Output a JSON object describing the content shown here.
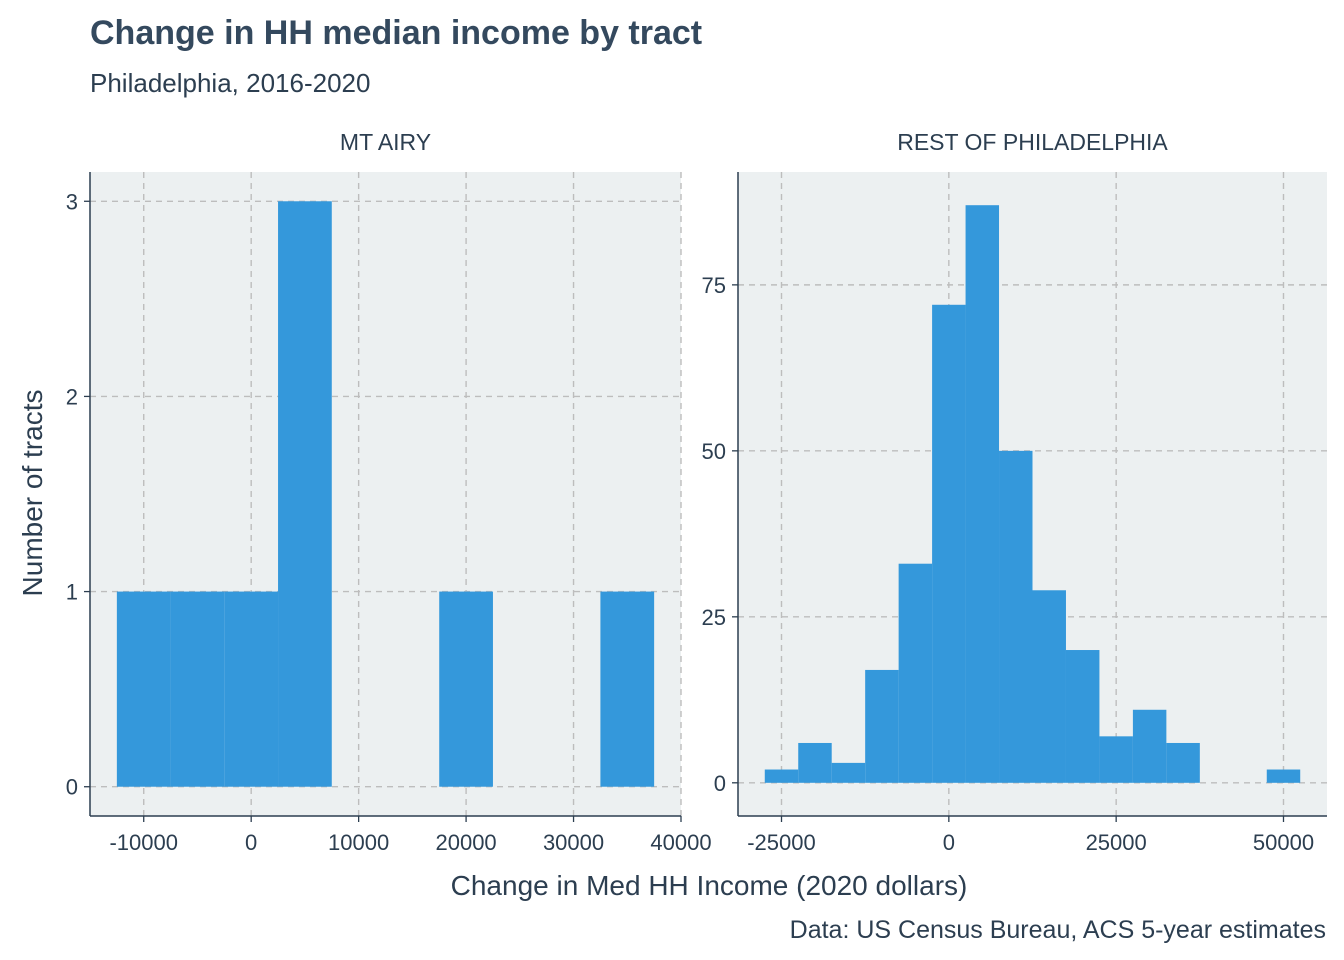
{
  "title": "Change in HH median income by tract",
  "subtitle": "Philadelphia, 2016-2020",
  "xlabel": "Change in Med HH Income (2020 dollars)",
  "ylabel": "Number of tracts",
  "caption": "Data: US Census Bureau, ACS 5-year estimates",
  "colors": {
    "bar": "#3498db",
    "panel_bg": "#ecf0f1",
    "grid": "#bdbdbd",
    "text": "#2c3e50"
  },
  "chart_data": [
    {
      "type": "bar",
      "panel": "MT AIRY",
      "xlim": [
        -15000,
        40000
      ],
      "ylim": [
        -0.15,
        3.15
      ],
      "x_ticks": [
        -10000,
        0,
        10000,
        20000,
        30000,
        40000
      ],
      "x_tick_labels": [
        "-10000",
        "0",
        "10000",
        "20000",
        "30000",
        "40000"
      ],
      "y_ticks": [
        0,
        1,
        2,
        3
      ],
      "y_tick_labels": [
        "0",
        "1",
        "2",
        "3"
      ],
      "grid": true,
      "bins": [
        {
          "x0": -12500,
          "x1": -7500,
          "count": 1
        },
        {
          "x0": -7500,
          "x1": -2500,
          "count": 1
        },
        {
          "x0": -2500,
          "x1": 2500,
          "count": 1
        },
        {
          "x0": 2500,
          "x1": 7500,
          "count": 3
        },
        {
          "x0": 17500,
          "x1": 22500,
          "count": 1
        },
        {
          "x0": 32500,
          "x1": 37500,
          "count": 1
        }
      ]
    },
    {
      "type": "bar",
      "panel": "REST OF PHILADELPHIA",
      "xlim": [
        -31500,
        56500
      ],
      "ylim": [
        -5,
        92
      ],
      "x_ticks": [
        -25000,
        0,
        25000,
        50000
      ],
      "x_tick_labels": [
        "-25000",
        "0",
        "25000",
        "50000"
      ],
      "y_ticks": [
        0,
        25,
        50,
        75
      ],
      "y_tick_labels": [
        "0",
        "25",
        "50",
        "75"
      ],
      "grid": true,
      "bins": [
        {
          "x0": -27500,
          "x1": -22500,
          "count": 2
        },
        {
          "x0": -22500,
          "x1": -17500,
          "count": 6
        },
        {
          "x0": -17500,
          "x1": -12500,
          "count": 3
        },
        {
          "x0": -12500,
          "x1": -7500,
          "count": 17
        },
        {
          "x0": -7500,
          "x1": -2500,
          "count": 33
        },
        {
          "x0": -2500,
          "x1": 2500,
          "count": 72
        },
        {
          "x0": 2500,
          "x1": 7500,
          "count": 87
        },
        {
          "x0": 7500,
          "x1": 12500,
          "count": 50
        },
        {
          "x0": 12500,
          "x1": 17500,
          "count": 29
        },
        {
          "x0": 17500,
          "x1": 22500,
          "count": 20
        },
        {
          "x0": 22500,
          "x1": 27500,
          "count": 7
        },
        {
          "x0": 27500,
          "x1": 32500,
          "count": 11
        },
        {
          "x0": 32500,
          "x1": 37500,
          "count": 6
        },
        {
          "x0": 37500,
          "x1": 42500,
          "count": 0
        },
        {
          "x0": 42500,
          "x1": 47500,
          "count": 0
        },
        {
          "x0": 47500,
          "x1": 52500,
          "count": 2
        }
      ]
    }
  ]
}
